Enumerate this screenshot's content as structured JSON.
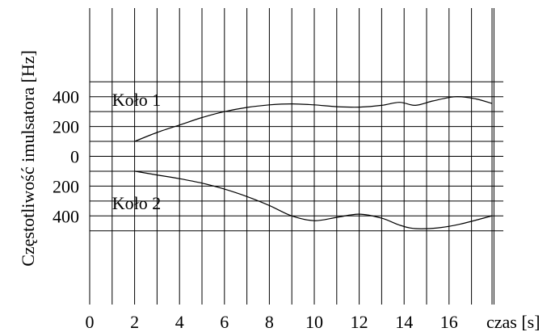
{
  "chart_data": {
    "type": "line",
    "title": "",
    "xlabel": "czas [s]",
    "ylabel": "Częstotliwość imulsatora [Hz]",
    "xlim": [
      0,
      18
    ],
    "ylim": [
      -500,
      500
    ],
    "x_ticks": [
      0,
      2,
      4,
      6,
      8,
      10,
      12,
      14,
      16
    ],
    "y_ticks": [
      {
        "value": 400,
        "label": "400"
      },
      {
        "value": 200,
        "label": "200"
      },
      {
        "value": 0,
        "label": "0"
      },
      {
        "value": -200,
        "label": "200"
      },
      {
        "value": -400,
        "label": "400"
      }
    ],
    "grid": true,
    "series": [
      {
        "name": "Koło 1",
        "label_at": [
          1,
          340
        ],
        "points": [
          [
            2,
            100
          ],
          [
            3,
            160
          ],
          [
            4,
            210
          ],
          [
            5,
            260
          ],
          [
            6,
            300
          ],
          [
            7,
            328
          ],
          [
            8,
            345
          ],
          [
            9,
            352
          ],
          [
            10,
            345
          ],
          [
            11,
            333
          ],
          [
            12,
            330
          ],
          [
            13,
            342
          ],
          [
            13.8,
            362
          ],
          [
            14.5,
            342
          ],
          [
            15.3,
            372
          ],
          [
            16.3,
            400
          ],
          [
            17.2,
            385
          ],
          [
            17.9,
            355
          ]
        ]
      },
      {
        "name": "Koło 2",
        "label_at": [
          1,
          -355
        ],
        "points": [
          [
            2,
            -100
          ],
          [
            3,
            -125
          ],
          [
            4,
            -150
          ],
          [
            5,
            -180
          ],
          [
            6,
            -220
          ],
          [
            7,
            -270
          ],
          [
            8,
            -330
          ],
          [
            9,
            -400
          ],
          [
            10,
            -432
          ],
          [
            11,
            -410
          ],
          [
            12,
            -388
          ],
          [
            13,
            -415
          ],
          [
            13.8,
            -462
          ],
          [
            14.5,
            -485
          ],
          [
            15.5,
            -480
          ],
          [
            16.5,
            -455
          ],
          [
            17.9,
            -400
          ]
        ]
      }
    ]
  }
}
